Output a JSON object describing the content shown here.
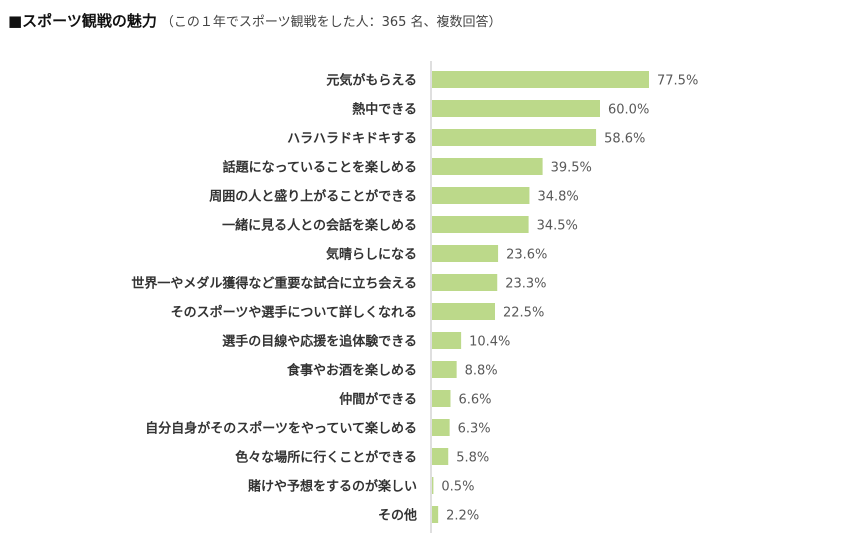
{
  "title": "■スポーツ観戦の魅力",
  "subtitle": "（この１年でスポーツ観戦をした人：365 名、複数回答）",
  "colors": {
    "bar": "#bcd98a",
    "axis": "#bfbfbf",
    "label": "#333333",
    "value": "#595959"
  },
  "chart_data": {
    "type": "bar",
    "orientation": "horizontal",
    "title": "■スポーツ観戦の魅力",
    "subtitle": "（この１年でスポーツ観戦をした人：365 名、複数回答）",
    "unit": "%",
    "categories": [
      "元気がもらえる",
      "熱中できる",
      "ハラハラドキドキする",
      "話題になっていることを楽しめる",
      "周囲の人と盛り上がることができる",
      "一緒に見る人との会話を楽しめる",
      "気晴らしになる",
      "世界一やメダル獲得など重要な試合に立ち会える",
      "そのスポーツや選手について詳しくなれる",
      "選手の目線や応援を追体験できる",
      "食事やお酒を楽しめる",
      "仲間ができる",
      "自分自身がそのスポーツをやっていて楽しめる",
      "色々な場所に行くことができる",
      "賭けや予想をするのが楽しい",
      "その他"
    ],
    "values": [
      77.5,
      60.0,
      58.6,
      39.5,
      34.8,
      34.5,
      23.6,
      23.3,
      22.5,
      10.4,
      8.8,
      6.6,
      6.3,
      5.8,
      0.5,
      2.2
    ],
    "value_labels": [
      "77.5%",
      "60.0%",
      "58.6%",
      "39.5%",
      "34.8%",
      "34.5%",
      "23.6%",
      "23.3%",
      "22.5%",
      "10.4%",
      "8.8%",
      "6.6%",
      "6.3%",
      "5.8%",
      "0.5%",
      "2.2%"
    ],
    "xlim": [
      0,
      100
    ],
    "grid": false,
    "legend": "none"
  }
}
